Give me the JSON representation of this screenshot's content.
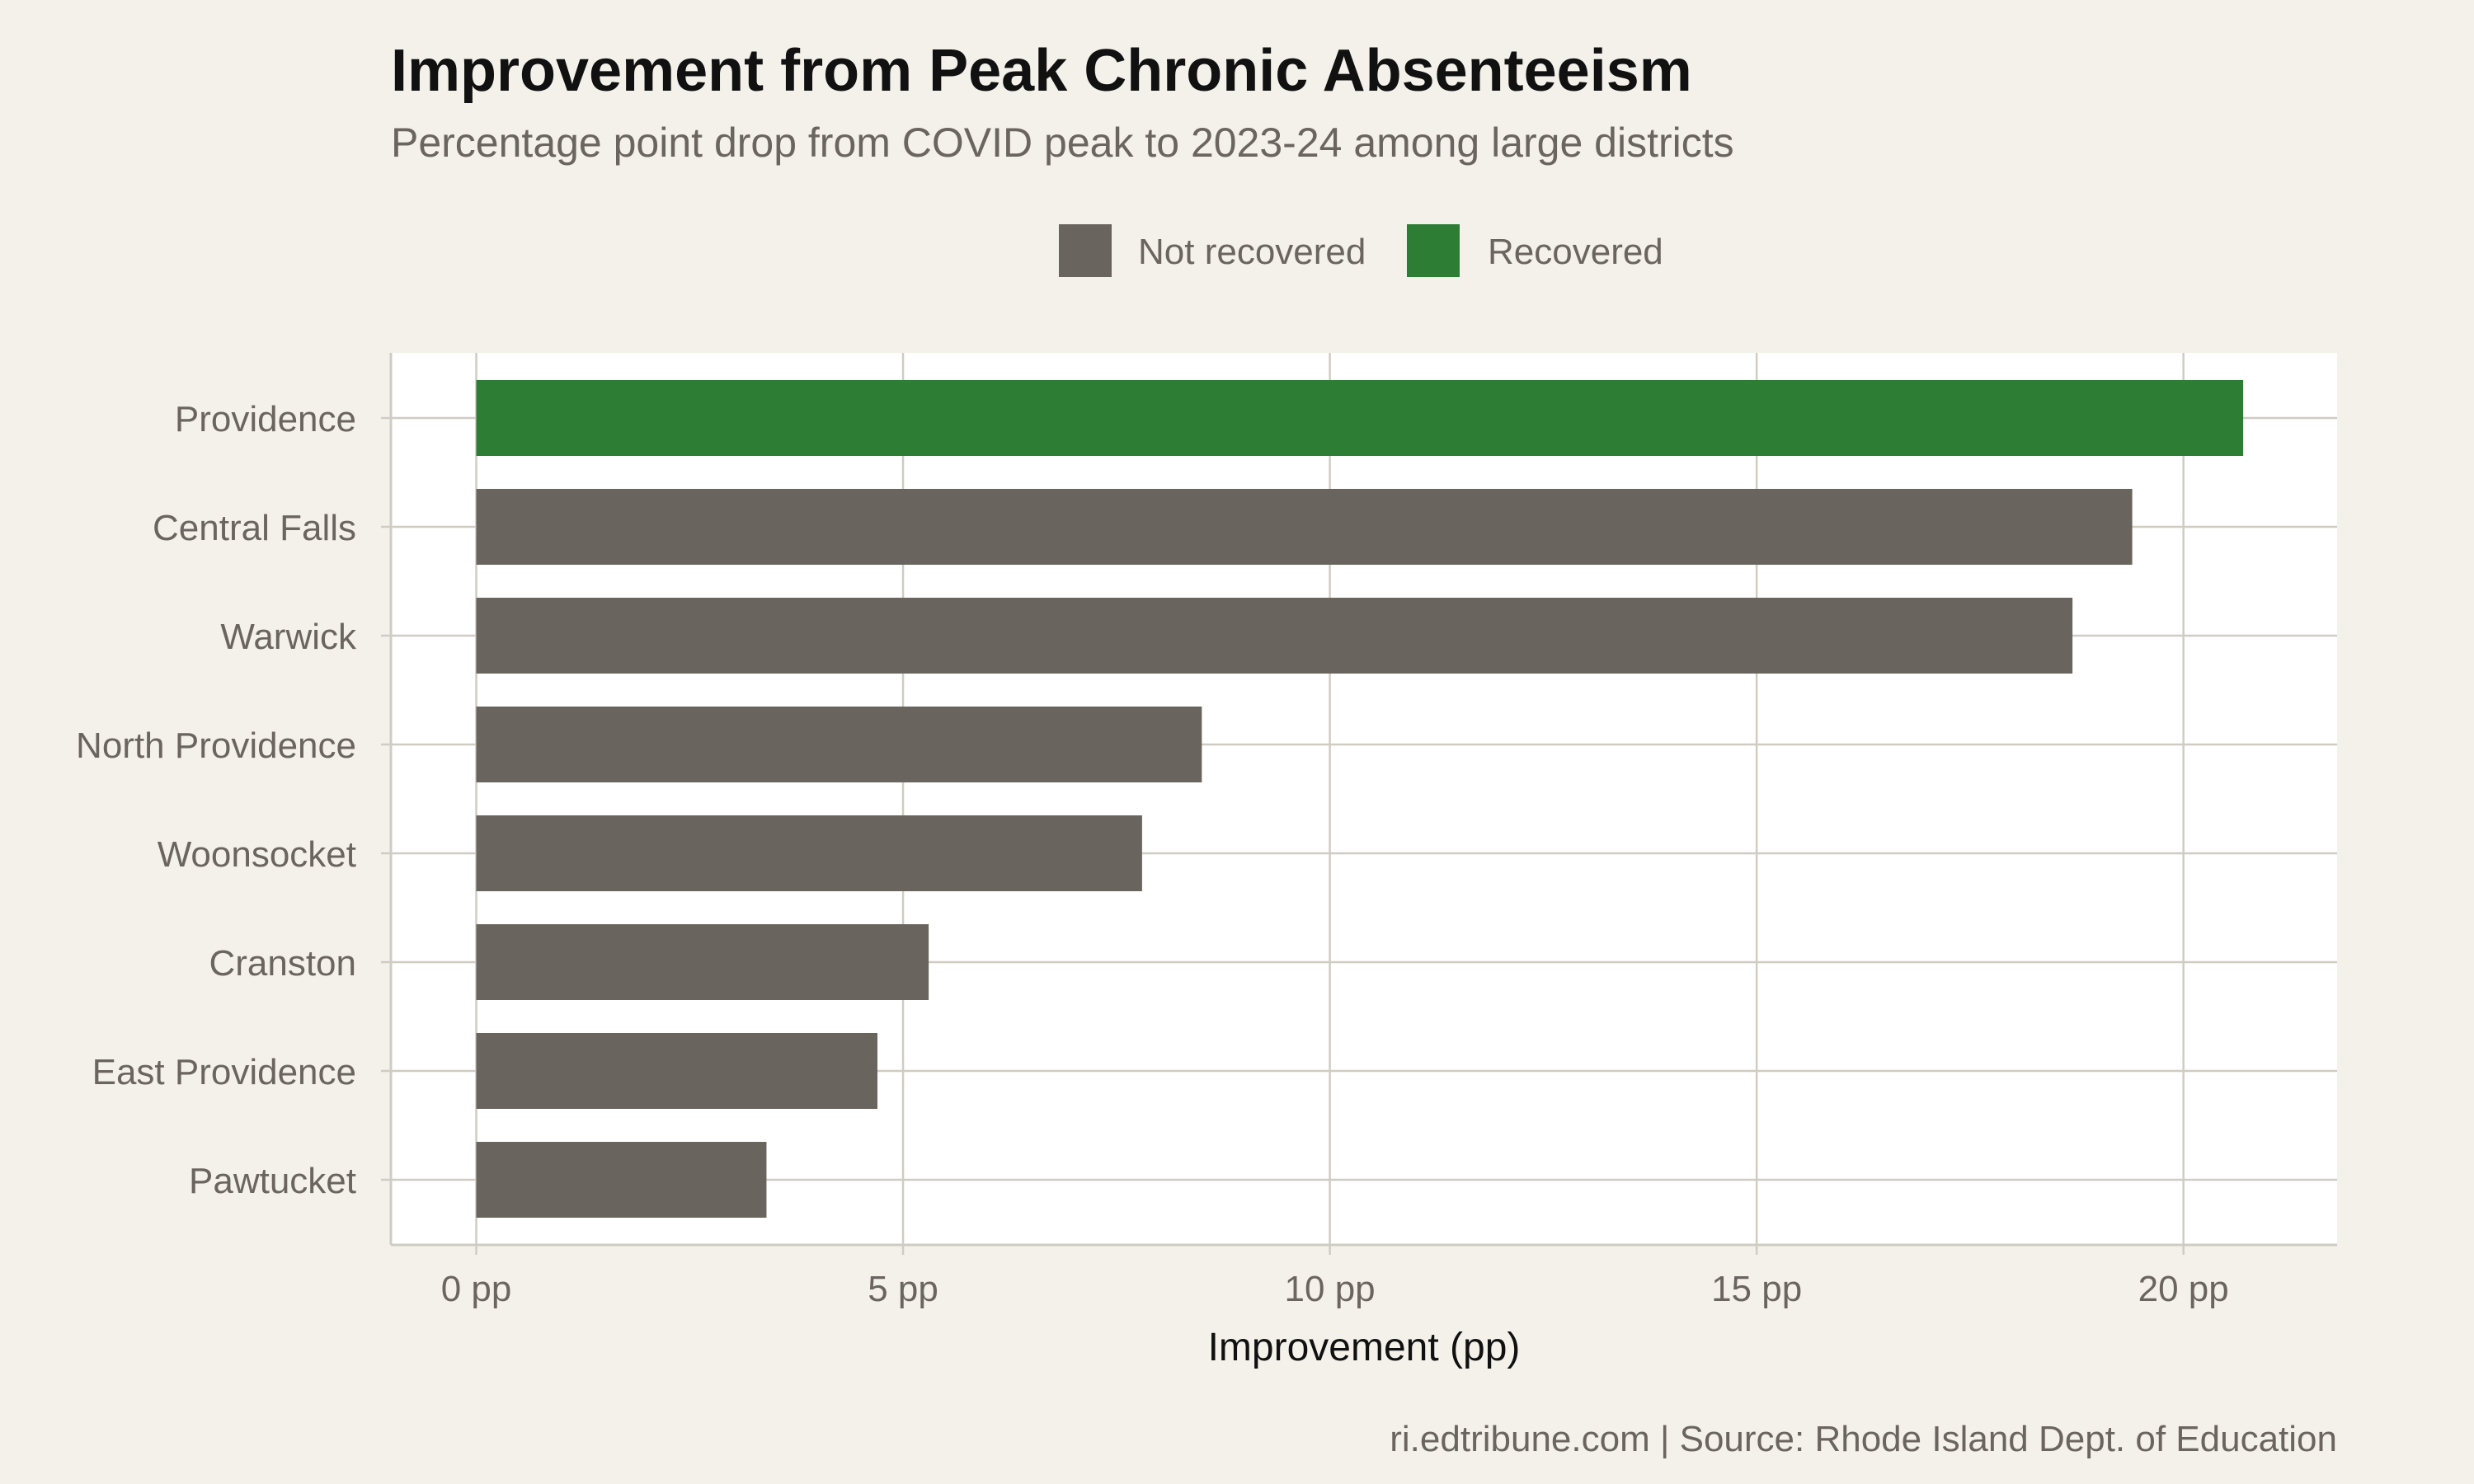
{
  "chart_data": {
    "type": "bar",
    "orientation": "horizontal",
    "title": "Improvement from Peak Chronic Absenteeism",
    "subtitle": "Percentage point drop from COVID peak to 2023-24 among large districts",
    "xlabel": "Improvement (pp)",
    "ylabel": "",
    "xlim": [
      -1.0,
      21.8
    ],
    "x_ticks": [
      0,
      5,
      10,
      15,
      20
    ],
    "x_tick_labels": [
      "0 pp",
      "5 pp",
      "10 pp",
      "15 pp",
      "20 pp"
    ],
    "grid": true,
    "legend_position": "top",
    "categories": [
      "Providence",
      "Central Falls",
      "Warwick",
      "North Providence",
      "Woonsocket",
      "Cranston",
      "East Providence",
      "Pawtucket"
    ],
    "values": [
      20.7,
      19.4,
      18.7,
      8.5,
      7.8,
      5.3,
      4.7,
      3.4
    ],
    "groups": [
      "Recovered",
      "Not recovered",
      "Not recovered",
      "Not recovered",
      "Not recovered",
      "Not recovered",
      "Not recovered",
      "Not recovered"
    ],
    "legend": [
      {
        "name": "Not recovered",
        "color": "#69645e"
      },
      {
        "name": "Recovered",
        "color": "#2e7d34"
      }
    ],
    "caption": "ri.edtribune.com | Source: Rhode Island Dept. of Education"
  },
  "colors": {
    "background": "#f4f1eb",
    "panel": "#ffffff",
    "grid": "#cfccc4",
    "text_muted": "#6b6560",
    "text_dark": "#111111"
  }
}
